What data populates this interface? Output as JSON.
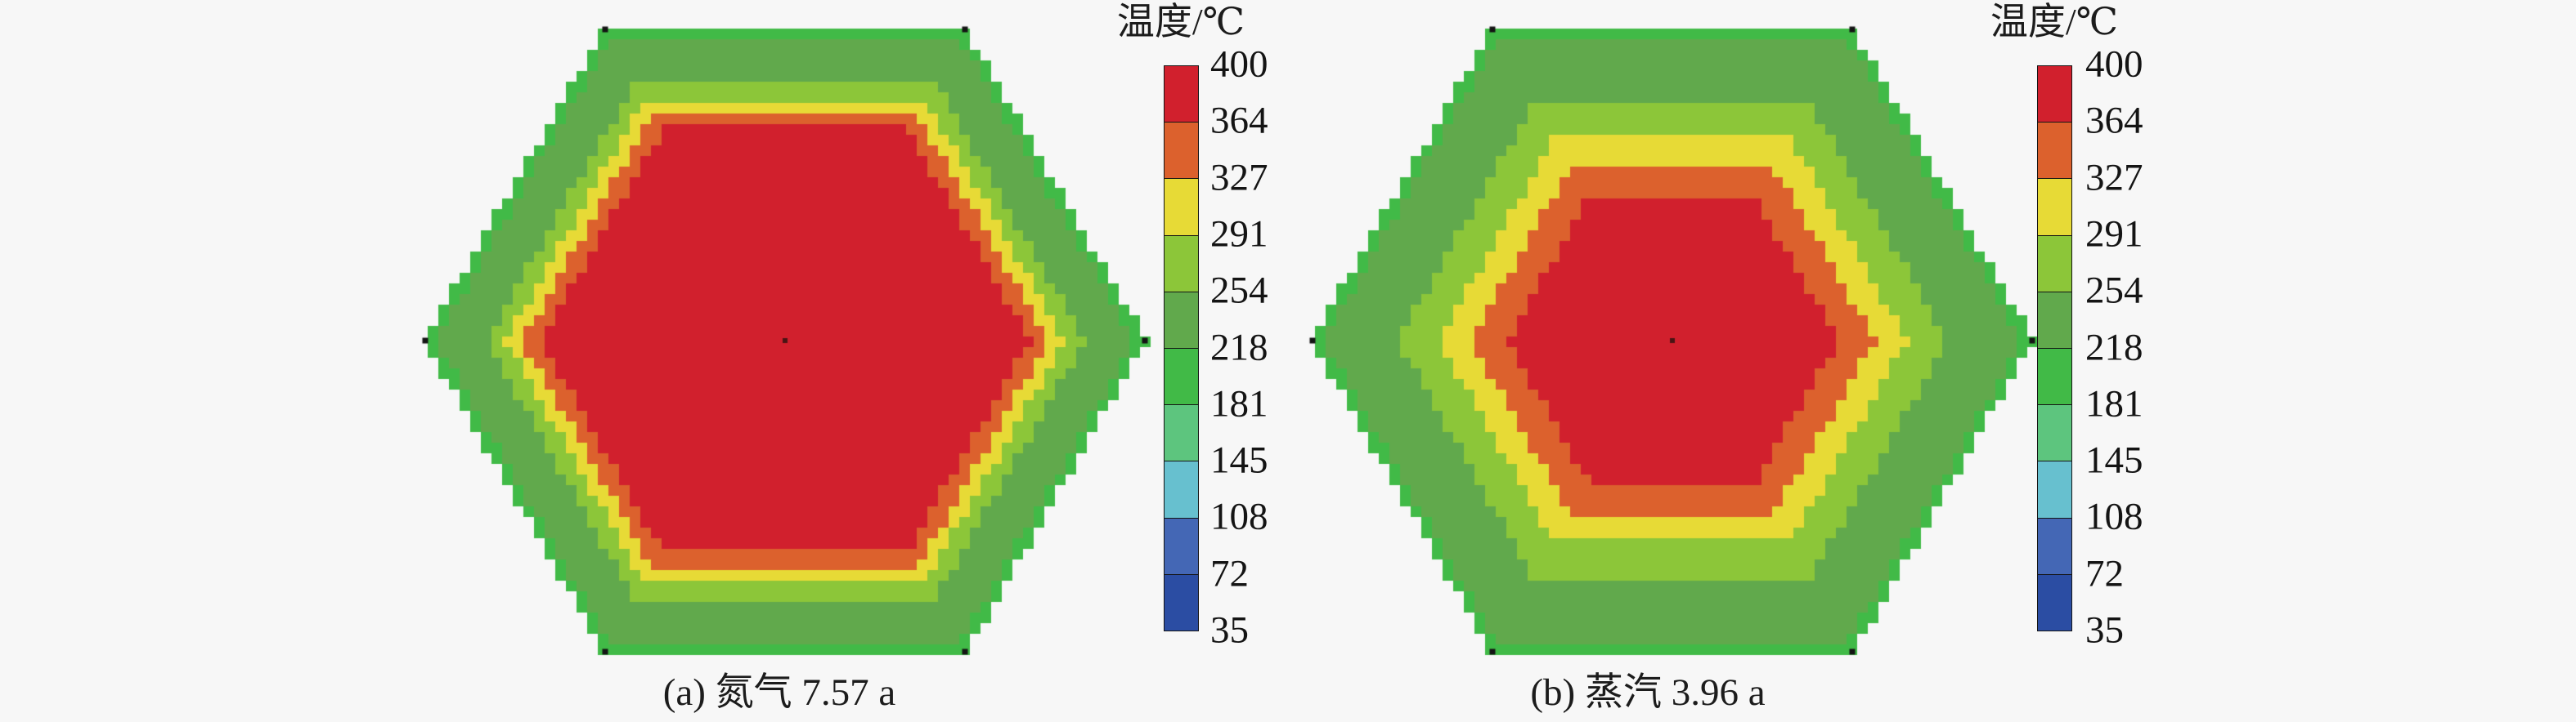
{
  "figure": {
    "background_color": "#f7f7f7",
    "marker_color": "#141414",
    "center_marker_color": "#4a1414"
  },
  "chart_data": {
    "type": "heatmap",
    "subtype": "hexagonal-temperature-contour-pair",
    "legend_position": "right-of-each-panel",
    "grid": "off",
    "colorbar": {
      "title": "温度/℃",
      "tick_labels": [
        "400",
        "364",
        "327",
        "291",
        "254",
        "218",
        "181",
        "145",
        "108",
        "72",
        "35"
      ],
      "segment_colors_top_to_bottom": [
        "#d1202d",
        "#dc612d",
        "#e7da36",
        "#8cc639",
        "#61a94c",
        "#41ba47",
        "#5dc57e",
        "#67c0cf",
        "#4467b5",
        "#2b4da3"
      ]
    },
    "panels": [
      {
        "id": "a",
        "caption": "(a) 氮气 7.57 a",
        "coolant": "氮气",
        "time_value": 7.57,
        "time_unit": "a",
        "bands_inner_to_outer": [
          {
            "temp_range_c": "364-400",
            "color": "#d1202d",
            "outer_fraction": 0.68
          },
          {
            "temp_range_c": "327-364",
            "color": "#dc612d",
            "outer_fraction": 0.732
          },
          {
            "temp_range_c": "291-327",
            "color": "#e7da36",
            "outer_fraction": 0.778
          },
          {
            "temp_range_c": "254-291",
            "color": "#8cc639",
            "outer_fraction": 0.832
          },
          {
            "temp_range_c": "218-254",
            "color": "#61a94c",
            "outer_fraction": 0.972
          },
          {
            "temp_range_c": "181-218",
            "color": "#41ba47",
            "outer_fraction": 1.0
          }
        ]
      },
      {
        "id": "b",
        "caption": "(b) 蒸汽 3.96 a",
        "coolant": "蒸汽",
        "time_value": 3.96,
        "time_unit": "a",
        "bands_inner_to_outer": [
          {
            "temp_range_c": "364-400",
            "color": "#d1202d",
            "outer_fraction": 0.46
          },
          {
            "temp_range_c": "327-364",
            "color": "#dc612d",
            "outer_fraction": 0.562
          },
          {
            "temp_range_c": "291-327",
            "color": "#e7da36",
            "outer_fraction": 0.652
          },
          {
            "temp_range_c": "254-291",
            "color": "#8cc639",
            "outer_fraction": 0.765
          },
          {
            "temp_range_c": "218-254",
            "color": "#61a94c",
            "outer_fraction": 0.972
          },
          {
            "temp_range_c": "181-218",
            "color": "#41ba47",
            "outer_fraction": 1.0
          }
        ]
      }
    ]
  }
}
